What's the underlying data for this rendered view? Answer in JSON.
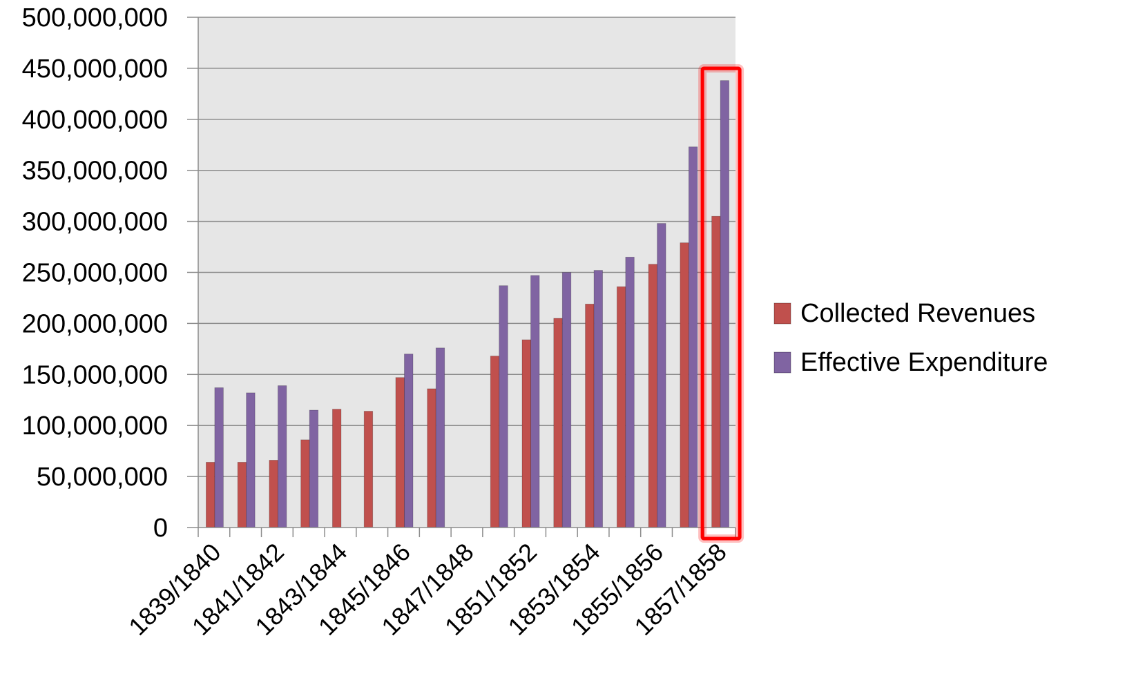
{
  "chart_data": {
    "type": "bar",
    "categories": [
      "1839/1840",
      "1840/1841",
      "1841/1842",
      "1842/1843",
      "1843/1844",
      "1844/1845",
      "1845/1846",
      "1846/1847",
      "1847/1848",
      "1850/1851",
      "1851/1852",
      "1852/1853",
      "1853/1854",
      "1854/1855",
      "1855/1856",
      "1856/1857",
      "1857/1858"
    ],
    "tick_labels_shown": [
      "1839/1840",
      "1841/1842",
      "1843/1844",
      "1845/1846",
      "1847/1848",
      "1851/1852",
      "1853/1854",
      "1855/1856",
      "1857/1858"
    ],
    "series": [
      {
        "name": "Collected Revenues",
        "color": "#c0504d",
        "values": [
          64000000,
          64000000,
          66000000,
          86000000,
          116000000,
          114000000,
          147000000,
          136000000,
          null,
          168000000,
          184000000,
          205000000,
          219000000,
          236000000,
          258000000,
          279000000,
          305000000
        ]
      },
      {
        "name": "Effective Expenditure",
        "color": "#8064a2",
        "values": [
          137000000,
          132000000,
          139000000,
          115000000,
          null,
          null,
          170000000,
          176000000,
          null,
          237000000,
          247000000,
          250000000,
          252000000,
          265000000,
          298000000,
          373000000,
          438000000
        ]
      }
    ],
    "yticks": [
      "0",
      "50,000,000",
      "100,000,000",
      "150,000,000",
      "200,000,000",
      "250,000,000",
      "300,000,000",
      "350,000,000",
      "400,000,000",
      "450,000,000",
      "500,000,000"
    ],
    "ylim": [
      0,
      500000000
    ],
    "grid": true,
    "plot_background": "#e6e6e6",
    "legend_position": "right",
    "highlight": {
      "category": "1857/1858",
      "color": "#ff0000"
    }
  }
}
